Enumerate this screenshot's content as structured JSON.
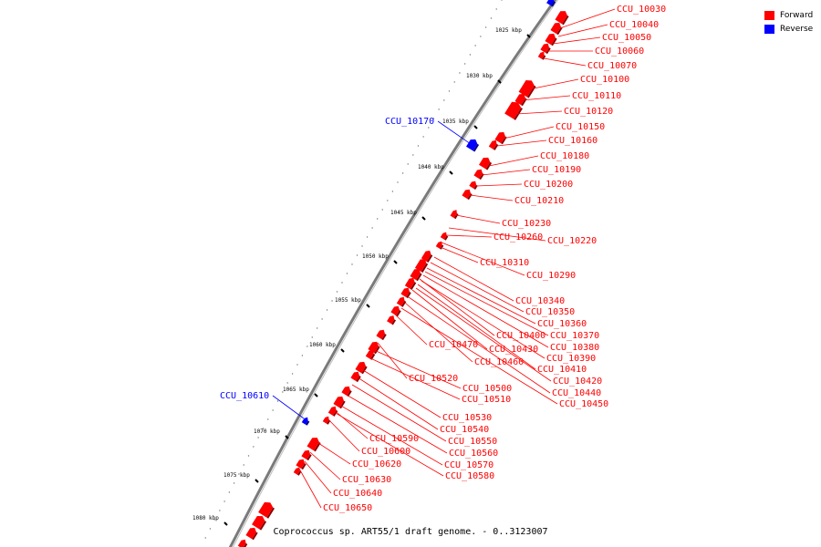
{
  "caption": "Coprococcus sp. ART55/1 draft genome. - 0..3123007",
  "legend": [
    {
      "label": "Forward",
      "color": "#ff0000"
    },
    {
      "label": "Reverse",
      "color": "#0000ff"
    }
  ],
  "colors": {
    "forward": "#ff0000",
    "reverse": "#0000ff",
    "backbone": "#808080"
  },
  "ticks": [
    {
      "kbp": 1025,
      "label": "1025 kbp"
    },
    {
      "kbp": 1030,
      "label": "1030 kbp"
    },
    {
      "kbp": 1035,
      "label": "1035 kbp"
    },
    {
      "kbp": 1040,
      "label": "1040 kbp"
    },
    {
      "kbp": 1045,
      "label": "1045 kbp"
    },
    {
      "kbp": 1050,
      "label": "1050 kbp"
    },
    {
      "kbp": 1055,
      "label": "1055 kbp"
    },
    {
      "kbp": 1060,
      "label": "1060 kbp"
    },
    {
      "kbp": 1065,
      "label": "1065 kbp"
    },
    {
      "kbp": 1070,
      "label": "1070 kbp"
    },
    {
      "kbp": 1075,
      "label": "1075 kbp"
    },
    {
      "kbp": 1080,
      "label": "1080 kbp"
    }
  ],
  "genes": [
    {
      "id": "CCU_10030",
      "strand": "forward"
    },
    {
      "id": "CCU_10040",
      "strand": "forward"
    },
    {
      "id": "CCU_10050",
      "strand": "forward"
    },
    {
      "id": "CCU_10060",
      "strand": "forward"
    },
    {
      "id": "CCU_10070",
      "strand": "forward"
    },
    {
      "id": "CCU_10100",
      "strand": "forward"
    },
    {
      "id": "CCU_10110",
      "strand": "forward"
    },
    {
      "id": "CCU_10120",
      "strand": "forward"
    },
    {
      "id": "CCU_10150",
      "strand": "forward"
    },
    {
      "id": "CCU_10160",
      "strand": "forward"
    },
    {
      "id": "CCU_10170",
      "strand": "reverse"
    },
    {
      "id": "CCU_10180",
      "strand": "forward"
    },
    {
      "id": "CCU_10190",
      "strand": "forward"
    },
    {
      "id": "CCU_10200",
      "strand": "forward"
    },
    {
      "id": "CCU_10210",
      "strand": "forward"
    },
    {
      "id": "CCU_10230",
      "strand": "forward"
    },
    {
      "id": "CCU_10260",
      "strand": "forward"
    },
    {
      "id": "CCU_10220",
      "strand": "forward"
    },
    {
      "id": "CCU_10310",
      "strand": "forward"
    },
    {
      "id": "CCU_10290",
      "strand": "forward"
    },
    {
      "id": "CCU_10340",
      "strand": "forward"
    },
    {
      "id": "CCU_10350",
      "strand": "forward"
    },
    {
      "id": "CCU_10360",
      "strand": "forward"
    },
    {
      "id": "CCU_10400",
      "strand": "forward"
    },
    {
      "id": "CCU_10370",
      "strand": "forward"
    },
    {
      "id": "CCU_10470",
      "strand": "forward"
    },
    {
      "id": "CCU_10430",
      "strand": "forward"
    },
    {
      "id": "CCU_10380",
      "strand": "forward"
    },
    {
      "id": "CCU_10460",
      "strand": "forward"
    },
    {
      "id": "CCU_10390",
      "strand": "forward"
    },
    {
      "id": "CCU_10410",
      "strand": "forward"
    },
    {
      "id": "CCU_10520",
      "strand": "forward"
    },
    {
      "id": "CCU_10420",
      "strand": "forward"
    },
    {
      "id": "CCU_10500",
      "strand": "forward"
    },
    {
      "id": "CCU_10440",
      "strand": "forward"
    },
    {
      "id": "CCU_10610",
      "strand": "reverse"
    },
    {
      "id": "CCU_10510",
      "strand": "forward"
    },
    {
      "id": "CCU_10450",
      "strand": "forward"
    },
    {
      "id": "CCU_10530",
      "strand": "forward"
    },
    {
      "id": "CCU_10540",
      "strand": "forward"
    },
    {
      "id": "CCU_10590",
      "strand": "forward"
    },
    {
      "id": "CCU_10550",
      "strand": "forward"
    },
    {
      "id": "CCU_10600",
      "strand": "forward"
    },
    {
      "id": "CCU_10560",
      "strand": "forward"
    },
    {
      "id": "CCU_10620",
      "strand": "forward"
    },
    {
      "id": "CCU_10570",
      "strand": "forward"
    },
    {
      "id": "CCU_10580",
      "strand": "forward"
    },
    {
      "id": "CCU_10630",
      "strand": "forward"
    },
    {
      "id": "CCU_10640",
      "strand": "forward"
    },
    {
      "id": "CCU_10650",
      "strand": "forward"
    }
  ]
}
